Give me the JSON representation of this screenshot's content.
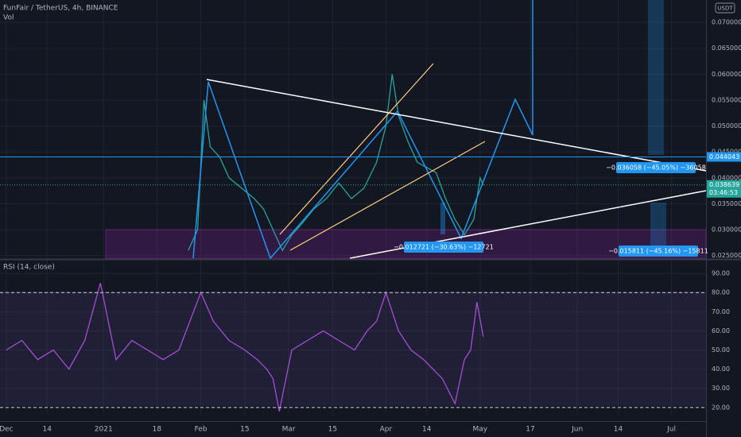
{
  "header": {
    "symbol": "FunFair / TetherUS, 4h, BINANCE",
    "volume": "Vol",
    "currency": "USDT",
    "time_left": "03:46:53"
  },
  "annotations": [
    "−0.036058 (−45.05%) −36058",
    "−0.012721 (−30.63%) −12721",
    "−0.015811 (−45.16%) −15811"
  ],
  "chart_data": [
    {
      "type": "line",
      "color": "#26a69a",
      "grid": true,
      "xlim": [
        "2020-11-29",
        "2021-07-12"
      ],
      "ylim": [
        0.0245,
        0.0743
      ],
      "yticks": [
        {
          "value": 0.07,
          "label": "0.070000"
        },
        {
          "value": 0.065,
          "label": "0.065000"
        },
        {
          "value": 0.06,
          "label": "0.060000"
        },
        {
          "value": 0.055,
          "label": "0.055000"
        },
        {
          "value": 0.05,
          "label": "0.050000"
        },
        {
          "value": 0.045,
          "label": "0.045000"
        },
        {
          "value": 0.04,
          "label": "0.040000"
        },
        {
          "value": 0.035,
          "label": "0.035000"
        },
        {
          "value": 0.03,
          "label": "0.030000"
        },
        {
          "value": 0.025,
          "label": "0.025000"
        }
      ],
      "level": 0.044043,
      "last": 0.038639,
      "x": [
        "2021-01-28",
        "2021-01-31",
        "2021-02-02",
        "2021-02-04",
        "2021-02-07",
        "2021-02-10",
        "2021-02-14",
        "2021-02-18",
        "2021-02-21",
        "2021-02-24",
        "2021-02-27",
        "2021-03-02",
        "2021-03-05",
        "2021-03-09",
        "2021-03-13",
        "2021-03-17",
        "2021-03-21",
        "2021-03-25",
        "2021-03-29",
        "2021-04-01",
        "2021-04-03",
        "2021-04-05",
        "2021-04-08",
        "2021-04-11",
        "2021-04-14",
        "2021-04-17",
        "2021-04-20",
        "2021-04-23",
        "2021-04-26",
        "2021-04-29",
        "2021-05-01",
        "2021-05-02"
      ],
      "values": [
        0.026,
        0.03,
        0.055,
        0.046,
        0.044,
        0.04,
        0.038,
        0.036,
        0.034,
        0.03,
        0.026,
        0.029,
        0.031,
        0.034,
        0.036,
        0.039,
        0.036,
        0.038,
        0.043,
        0.05,
        0.06,
        0.052,
        0.047,
        0.043,
        0.042,
        0.041,
        0.036,
        0.032,
        0.029,
        0.032,
        0.04,
        0.0386
      ]
    },
    {
      "type": "line",
      "title": "RSI (14, close)",
      "color": "#a84cd6",
      "grid": true,
      "xlim": [
        "2020-11-29",
        "2021-07-12"
      ],
      "ylim": [
        16.2,
        96.7
      ],
      "yticks": [
        {
          "value": 90,
          "label": "90.00"
        },
        {
          "value": 80,
          "label": "80.00"
        },
        {
          "value": 70,
          "label": "70.00"
        },
        {
          "value": 60,
          "label": "60.00"
        },
        {
          "value": 50,
          "label": "50.00"
        },
        {
          "value": 40,
          "label": "40.00"
        },
        {
          "value": 30,
          "label": "30.00"
        },
        {
          "value": 20,
          "label": "20.00"
        }
      ],
      "bands": [
        80,
        20
      ],
      "xticks": [
        {
          "value": "2020-12-01",
          "label": "Dec"
        },
        {
          "value": "2020-12-14",
          "label": "14"
        },
        {
          "value": "2021-01-01",
          "label": "2021"
        },
        {
          "value": "2021-01-18",
          "label": "18"
        },
        {
          "value": "2021-02-01",
          "label": "Feb"
        },
        {
          "value": "2021-02-15",
          "label": "15"
        },
        {
          "value": "2021-03-01",
          "label": "Mar"
        },
        {
          "value": "2021-03-15",
          "label": "15"
        },
        {
          "value": "2021-04-01",
          "label": "Apr"
        },
        {
          "value": "2021-04-14",
          "label": "14"
        },
        {
          "value": "2021-05-01",
          "label": "May"
        },
        {
          "value": "2021-05-17",
          "label": "17"
        },
        {
          "value": "2021-06-01",
          "label": "Jun"
        },
        {
          "value": "2021-06-14",
          "label": "14"
        },
        {
          "value": "2021-07-01",
          "label": "Jul"
        }
      ],
      "x": [
        "2020-12-01",
        "2020-12-06",
        "2020-12-11",
        "2020-12-16",
        "2020-12-21",
        "2020-12-26",
        "2020-12-31",
        "2021-01-05",
        "2021-01-10",
        "2021-01-15",
        "2021-01-20",
        "2021-01-25",
        "2021-02-01",
        "2021-02-05",
        "2021-02-10",
        "2021-02-15",
        "2021-02-19",
        "2021-02-22",
        "2021-02-24",
        "2021-02-26",
        "2021-03-02",
        "2021-03-07",
        "2021-03-12",
        "2021-03-17",
        "2021-03-22",
        "2021-03-26",
        "2021-03-29",
        "2021-04-01",
        "2021-04-05",
        "2021-04-09",
        "2021-04-13",
        "2021-04-16",
        "2021-04-19",
        "2021-04-23",
        "2021-04-26",
        "2021-04-28",
        "2021-04-30",
        "2021-05-02"
      ],
      "values": [
        50,
        55,
        45,
        50,
        40,
        55,
        85,
        45,
        55,
        50,
        45,
        50,
        80,
        65,
        55,
        50,
        45,
        40,
        35,
        18,
        50,
        55,
        60,
        55,
        50,
        60,
        65,
        80,
        60,
        50,
        45,
        40,
        35,
        22,
        45,
        50,
        75,
        57
      ]
    }
  ]
}
